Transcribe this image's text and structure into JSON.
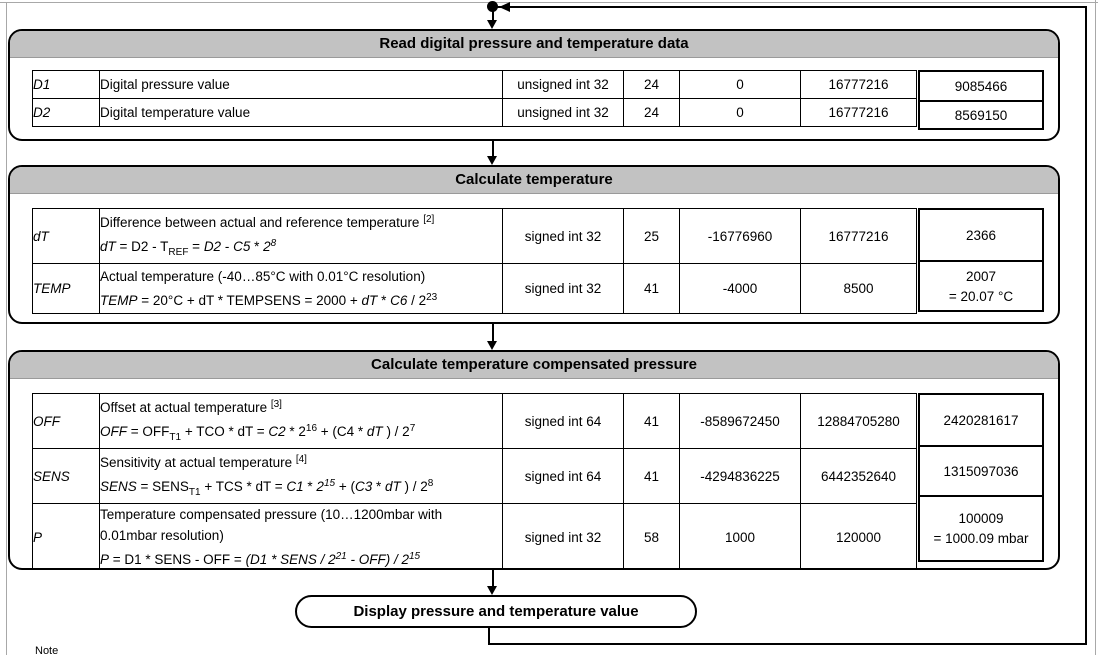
{
  "colors": {
    "header_bg": "#c2c2c2",
    "line": "#000000",
    "page_edge": "#a8a8a8"
  },
  "note_label": "Note",
  "flow": {
    "display_label": "Display pressure and temperature value"
  },
  "boxes": [
    {
      "id": "read",
      "title": "Read digital pressure and temperature data",
      "rows": [
        {
          "name": "D1",
          "desc_lines": [
            [
              {
                "t": "Digital pressure value",
                "s": "r"
              }
            ]
          ],
          "type": "unsigned int 32",
          "size": "24",
          "min": "0",
          "max": "16777216",
          "value_lines": [
            "9085466"
          ]
        },
        {
          "name": "D2",
          "desc_lines": [
            [
              {
                "t": "Digital temperature value",
                "s": "r"
              }
            ]
          ],
          "type": "unsigned int 32",
          "size": "24",
          "min": "0",
          "max": "16777216",
          "value_lines": [
            "8569150"
          ]
        }
      ]
    },
    {
      "id": "temp",
      "title": "Calculate temperature",
      "rows": [
        {
          "name": "dT",
          "desc_lines": [
            [
              {
                "t": "Difference between actual and reference temperature ",
                "s": "r"
              },
              {
                "t": "[2]",
                "s": "sup"
              }
            ],
            [
              {
                "t": "dT",
                "s": "i"
              },
              {
                "t": " = D2 - T",
                "s": "r"
              },
              {
                "t": "REF",
                "s": "sub"
              },
              {
                "t": " = ",
                "s": "r"
              },
              {
                "t": "D2",
                "s": "i"
              },
              {
                "t": " - ",
                "s": "r"
              },
              {
                "t": "C5",
                "s": "i"
              },
              {
                "t": " * ",
                "s": "r"
              },
              {
                "t": "2",
                "s": "i"
              },
              {
                "t": "8",
                "s": "isup"
              }
            ]
          ],
          "type": "signed int 32",
          "size": "25",
          "min": "-16776960",
          "max": "16777216",
          "value_lines": [
            "2366"
          ]
        },
        {
          "name": "TEMP",
          "desc_lines": [
            [
              {
                "t": "Actual temperature (-40…85°C with 0.01°C resolution)",
                "s": "r"
              }
            ],
            [
              {
                "t": "TEMP",
                "s": "i"
              },
              {
                "t": " = 20°C + dT * TEMPSENS = 2000 + ",
                "s": "r"
              },
              {
                "t": "dT",
                "s": "i"
              },
              {
                "t": " * ",
                "s": "r"
              },
              {
                "t": "C6",
                "s": "i"
              },
              {
                "t": " / 2",
                "s": "r"
              },
              {
                "t": "23",
                "s": "sup"
              }
            ]
          ],
          "type": "signed int 32",
          "size": "41",
          "min": "-4000",
          "max": "8500",
          "value_lines": [
            "2007",
            "= 20.07 °C"
          ]
        }
      ]
    },
    {
      "id": "press",
      "title": "Calculate temperature compensated pressure",
      "rows": [
        {
          "name": "OFF",
          "desc_lines": [
            [
              {
                "t": "Offset at actual temperature ",
                "s": "r"
              },
              {
                "t": "[3]",
                "s": "sup"
              }
            ],
            [
              {
                "t": "OFF",
                "s": "i"
              },
              {
                "t": " = OFF",
                "s": "r"
              },
              {
                "t": "T1",
                "s": "sub"
              },
              {
                "t": " + TCO * dT = ",
                "s": "r"
              },
              {
                "t": "C2",
                "s": "i"
              },
              {
                "t": " * 2",
                "s": "r"
              },
              {
                "t": "16",
                "s": "sup"
              },
              {
                "t": " + (C4 * ",
                "s": "r"
              },
              {
                "t": "dT",
                "s": "i"
              },
              {
                "t": " ) / 2",
                "s": "r"
              },
              {
                "t": "7",
                "s": "sup"
              }
            ]
          ],
          "type": "signed int 64",
          "size": "41",
          "min": "-8589672450",
          "max": "12884705280",
          "value_lines": [
            "2420281617"
          ]
        },
        {
          "name": "SENS",
          "desc_lines": [
            [
              {
                "t": "Sensitivity at actual temperature ",
                "s": "r"
              },
              {
                "t": "[4]",
                "s": "sup"
              }
            ],
            [
              {
                "t": "SENS",
                "s": "i"
              },
              {
                "t": " = SENS",
                "s": "r"
              },
              {
                "t": "T1",
                "s": "sub"
              },
              {
                "t": " + TCS * dT = ",
                "s": "r"
              },
              {
                "t": "C1",
                "s": "i"
              },
              {
                "t": " * ",
                "s": "r"
              },
              {
                "t": "2",
                "s": "i"
              },
              {
                "t": "15",
                "s": "isup"
              },
              {
                "t": " + (",
                "s": "r"
              },
              {
                "t": "C3",
                "s": "i"
              },
              {
                "t": " * ",
                "s": "r"
              },
              {
                "t": "dT",
                "s": "i"
              },
              {
                "t": " ) / 2",
                "s": "r"
              },
              {
                "t": "8",
                "s": "sup"
              }
            ]
          ],
          "type": "signed int 64",
          "size": "41",
          "min": "-4294836225",
          "max": "6442352640",
          "value_lines": [
            "1315097036"
          ]
        },
        {
          "name": "P",
          "desc_lines": [
            [
              {
                "t": "Temperature compensated pressure (10…1200mbar with",
                "s": "r"
              }
            ],
            [
              {
                "t": "0.01mbar resolution)",
                "s": "r"
              }
            ],
            [
              {
                "t": "P",
                "s": "i"
              },
              {
                "t": " = D1 * SENS - OFF = ",
                "s": "r"
              },
              {
                "t": "(D1 * SENS / 2",
                "s": "i"
              },
              {
                "t": "21",
                "s": "isup"
              },
              {
                "t": " - OFF) / 2",
                "s": "i"
              },
              {
                "t": "15",
                "s": "isup"
              }
            ]
          ],
          "type": "signed int 32",
          "size": "58",
          "min": "1000",
          "max": "120000",
          "value_lines": [
            "100009",
            "= 1000.09 mbar"
          ]
        }
      ]
    }
  ]
}
